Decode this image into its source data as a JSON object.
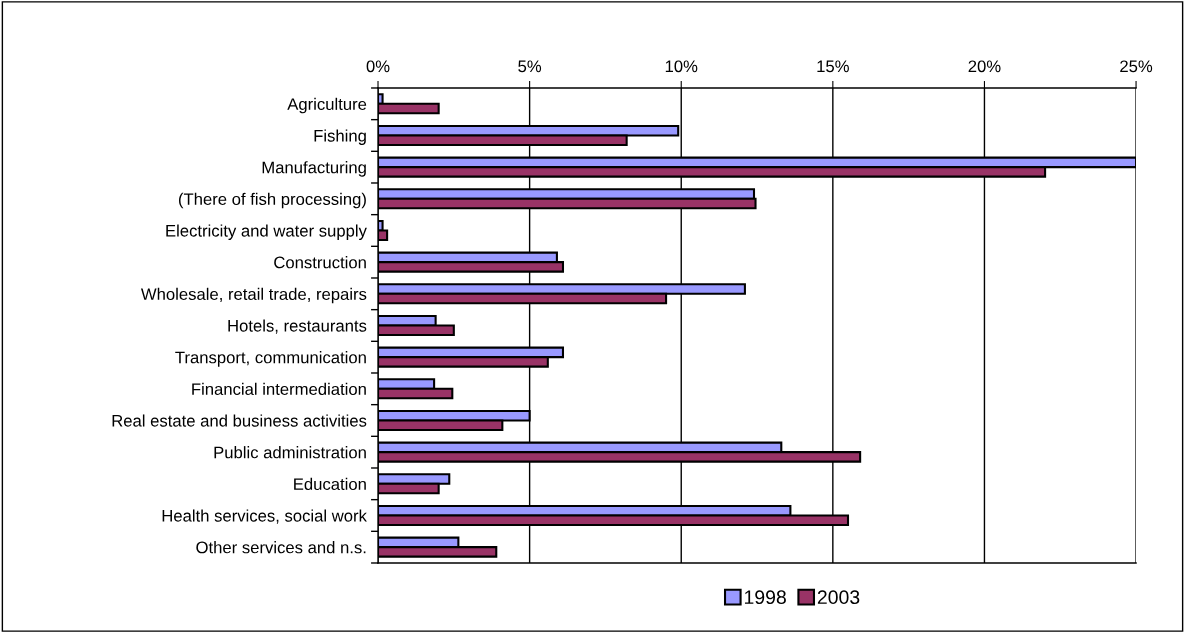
{
  "chart_data": {
    "type": "bar",
    "orientation": "horizontal",
    "categories": [
      "Agriculture",
      "Fishing",
      "Manufacturing",
      "(There of fish processing)",
      "Electricity and water supply",
      "Construction",
      "Wholesale, retail trade, repairs",
      "Hotels, restaurants",
      "Transport, communication",
      "Financial intermediation",
      "Real estate and business activities",
      "Public administration",
      "Education",
      "Health services, social work",
      "Other services and n.s."
    ],
    "series": [
      {
        "name": "1998",
        "color": "#9999ff",
        "values": [
          0.15,
          9.9,
          25,
          12.4,
          0.15,
          5.9,
          12.1,
          1.9,
          6.1,
          1.85,
          5.0,
          13.3,
          2.35,
          13.6,
          2.65
        ]
      },
      {
        "name": "2003",
        "color": "#993366",
        "values": [
          2.0,
          8.2,
          22.0,
          12.45,
          0.3,
          6.1,
          9.5,
          2.5,
          5.6,
          2.45,
          4.1,
          15.9,
          2.0,
          15.5,
          3.9
        ]
      }
    ],
    "xlim": [
      0,
      25
    ],
    "xticks": [
      {
        "value": 0,
        "label": "0%"
      },
      {
        "value": 5,
        "label": "5%"
      },
      {
        "value": 10,
        "label": "10%"
      },
      {
        "value": 15,
        "label": "15%"
      },
      {
        "value": 20,
        "label": "20%"
      },
      {
        "value": 25,
        "label": "25%"
      }
    ],
    "grid": "x",
    "legend": "bottom"
  }
}
